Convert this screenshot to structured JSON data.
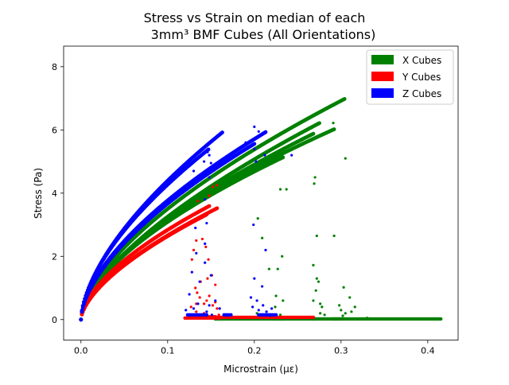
{
  "chart_data": {
    "type": "scatter",
    "title_line1": "Stress vs Strain on median of each",
    "title_line2": "3mm³ BMF Cubes (All Orientations)",
    "xlabel": "Microstrain (με)",
    "ylabel": "Stress (Pa)",
    "xlim": [
      -0.02,
      0.435
    ],
    "ylim": [
      -0.65,
      8.65
    ],
    "xticks": [
      0.0,
      0.1,
      0.2,
      0.3,
      0.4
    ],
    "xtick_labels": [
      "0.0",
      "0.1",
      "0.2",
      "0.3",
      "0.4"
    ],
    "yticks": [
      0,
      2,
      4,
      6,
      8
    ],
    "ytick_labels": [
      "0",
      "2",
      "4",
      "6",
      "8"
    ],
    "grid": false,
    "legend_position": "top-right",
    "series": [
      {
        "name": "X Cubes",
        "color": "#008000",
        "curves": [
          {
            "a": 14.6,
            "p": 0.62,
            "xmax": 0.304
          },
          {
            "a": 14.2,
            "p": 0.64,
            "xmax": 0.275
          },
          {
            "a": 13.3,
            "p": 0.62,
            "xmax": 0.268
          },
          {
            "a": 12.3,
            "p": 0.6,
            "xmax": 0.233
          },
          {
            "a": 12.6,
            "p": 0.6,
            "xmax": 0.292
          }
        ],
        "tail_segments": [
          [
            0.155,
            0.232
          ],
          [
            0.222,
            0.27
          ],
          [
            0.268,
            0.3
          ],
          [
            0.29,
            0.415
          ]
        ],
        "scatter_points": [
          [
            0.291,
            6.22
          ],
          [
            0.305,
            5.1
          ],
          [
            0.27,
            4.5
          ],
          [
            0.269,
            4.3
          ],
          [
            0.23,
            4.12
          ],
          [
            0.237,
            4.12
          ],
          [
            0.272,
            2.65
          ],
          [
            0.292,
            2.65
          ],
          [
            0.209,
            2.58
          ],
          [
            0.232,
            2.0
          ],
          [
            0.227,
            1.6
          ],
          [
            0.268,
            1.72
          ],
          [
            0.217,
            1.6
          ],
          [
            0.272,
            1.3
          ],
          [
            0.274,
            1.2
          ],
          [
            0.303,
            1.02
          ],
          [
            0.271,
            0.92
          ],
          [
            0.31,
            0.7
          ],
          [
            0.268,
            0.6
          ],
          [
            0.276,
            0.5
          ],
          [
            0.298,
            0.45
          ],
          [
            0.278,
            0.4
          ],
          [
            0.224,
            0.4
          ],
          [
            0.316,
            0.4
          ],
          [
            0.3,
            0.3
          ],
          [
            0.312,
            0.25
          ],
          [
            0.305,
            0.2
          ],
          [
            0.276,
            0.2
          ],
          [
            0.203,
            0.2
          ],
          [
            0.23,
            0.15
          ],
          [
            0.204,
            3.2
          ],
          [
            0.225,
            0.75
          ],
          [
            0.233,
            0.6
          ],
          [
            0.281,
            0.15
          ],
          [
            0.302,
            0.12
          ],
          [
            0.33,
            0.05
          ]
        ]
      },
      {
        "name": "Y Cubes",
        "color": "#ff0000",
        "curves": [
          {
            "a": 11.3,
            "p": 0.6,
            "xmax": 0.148
          },
          {
            "a": 11.1,
            "p": 0.62,
            "xmax": 0.157
          },
          {
            "a": 11.0,
            "p": 0.62,
            "xmax": 0.145
          }
        ],
        "tail_segments": [
          [
            0.12,
            0.16
          ],
          [
            0.15,
            0.268
          ],
          [
            0.132,
            0.155
          ]
        ],
        "scatter_points": [
          [
            0.157,
            4.25
          ],
          [
            0.152,
            4.2
          ],
          [
            0.135,
            3.75
          ],
          [
            0.148,
            3.92
          ],
          [
            0.14,
            2.55
          ],
          [
            0.133,
            2.5
          ],
          [
            0.144,
            2.3
          ],
          [
            0.13,
            2.2
          ],
          [
            0.128,
            1.9
          ],
          [
            0.147,
            1.9
          ],
          [
            0.151,
            1.4
          ],
          [
            0.146,
            1.3
          ],
          [
            0.138,
            1.2
          ],
          [
            0.155,
            1.1
          ],
          [
            0.132,
            1.0
          ],
          [
            0.134,
            0.85
          ],
          [
            0.148,
            0.75
          ],
          [
            0.137,
            0.7
          ],
          [
            0.133,
            0.5
          ],
          [
            0.142,
            0.5
          ],
          [
            0.152,
            0.45
          ],
          [
            0.157,
            0.35
          ],
          [
            0.133,
            0.25
          ],
          [
            0.142,
            0.2
          ],
          [
            0.159,
            0.15
          ],
          [
            0.127,
            0.4
          ],
          [
            0.145,
            0.6
          ],
          [
            0.155,
            0.55
          ]
        ]
      },
      {
        "name": "Z Cubes",
        "color": "#0000ff",
        "curves": [
          {
            "a": 17.9,
            "p": 0.61,
            "xmax": 0.163
          },
          {
            "a": 17.0,
            "p": 0.6,
            "xmax": 0.147
          },
          {
            "a": 15.0,
            "p": 0.6,
            "xmax": 0.213
          },
          {
            "a": 14.6,
            "p": 0.6,
            "xmax": 0.2
          }
        ],
        "tail_segments": [
          [
            0.123,
            0.145
          ],
          [
            0.205,
            0.225
          ],
          [
            0.165,
            0.173
          ]
        ],
        "scatter_points": [
          [
            0.2,
            6.1
          ],
          [
            0.205,
            5.95
          ],
          [
            0.19,
            5.6
          ],
          [
            0.202,
            5.0
          ],
          [
            0.212,
            5.2
          ],
          [
            0.2,
            5.4
          ],
          [
            0.243,
            5.2
          ],
          [
            0.146,
            5.3
          ],
          [
            0.148,
            5.2
          ],
          [
            0.15,
            4.95
          ],
          [
            0.145,
            4.6
          ],
          [
            0.148,
            4.5
          ],
          [
            0.13,
            4.7
          ],
          [
            0.142,
            5.0
          ],
          [
            0.143,
            3.8
          ],
          [
            0.132,
            2.9
          ],
          [
            0.145,
            3.05
          ],
          [
            0.143,
            2.4
          ],
          [
            0.133,
            2.1
          ],
          [
            0.128,
            1.5
          ],
          [
            0.143,
            1.8
          ],
          [
            0.15,
            1.4
          ],
          [
            0.137,
            1.2
          ],
          [
            0.125,
            0.8
          ],
          [
            0.135,
            0.5
          ],
          [
            0.148,
            0.45
          ],
          [
            0.13,
            0.35
          ],
          [
            0.16,
            0.35
          ],
          [
            0.145,
            0.25
          ],
          [
            0.155,
            0.6
          ],
          [
            0.151,
            0.15
          ],
          [
            0.121,
            0.3
          ],
          [
            0.199,
            3.0
          ],
          [
            0.213,
            2.2
          ],
          [
            0.2,
            1.3
          ],
          [
            0.209,
            1.05
          ],
          [
            0.196,
            0.7
          ],
          [
            0.203,
            0.6
          ],
          [
            0.21,
            0.45
          ],
          [
            0.198,
            0.4
          ],
          [
            0.214,
            0.25
          ],
          [
            0.22,
            0.35
          ],
          [
            0.205,
            0.3
          ],
          [
            0.218,
            0.12
          ]
        ]
      }
    ]
  }
}
